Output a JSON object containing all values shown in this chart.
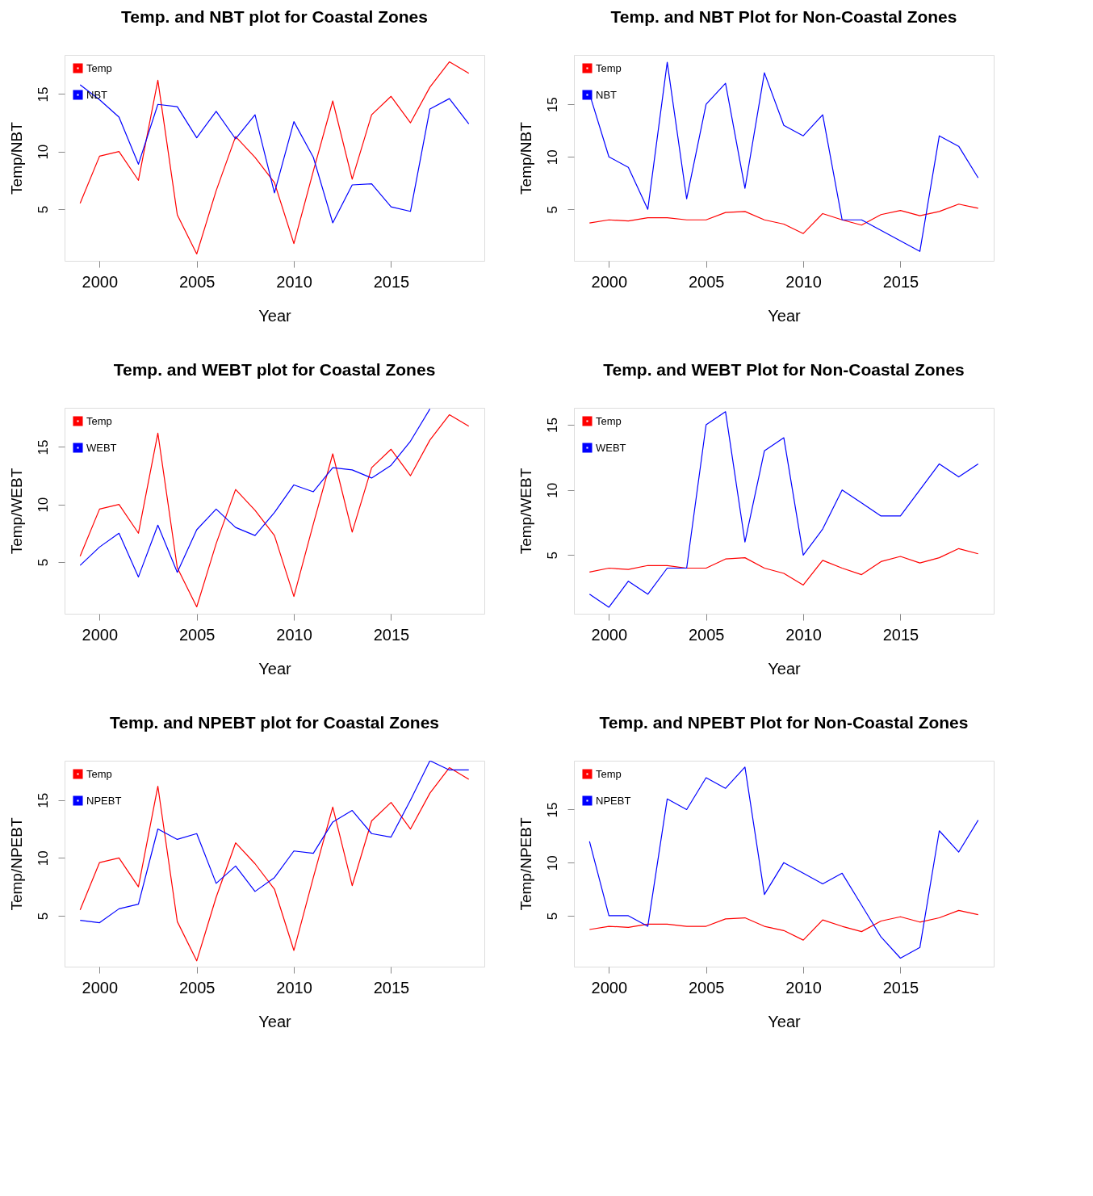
{
  "chart_data": [
    {
      "type": "line",
      "title": "Temp. and NBT plot for Coastal Zones",
      "xlabel": "Year",
      "ylabel": "Temp/NBT",
      "x": [
        1999,
        2000,
        2001,
        2002,
        2003,
        2004,
        2005,
        2006,
        2007,
        2008,
        2009,
        2010,
        2011,
        2012,
        2013,
        2014,
        2015,
        2016,
        2017,
        2018,
        2019
      ],
      "xlim": [
        1998.2,
        2019.8
      ],
      "xticks": [
        2000,
        2005,
        2010,
        2015
      ],
      "ylim": [
        0.5,
        18.4
      ],
      "yticks": [
        5,
        10,
        15
      ],
      "grid": false,
      "legend": "top left",
      "series": [
        {
          "name": "Temp",
          "color": "#ff0000",
          "values": [
            5.5,
            9.6,
            10.0,
            7.5,
            16.2,
            4.5,
            1.1,
            6.6,
            11.3,
            9.5,
            7.3,
            2.0,
            8.3,
            14.4,
            7.6,
            13.2,
            14.8,
            12.5,
            15.6,
            17.8,
            16.8
          ]
        },
        {
          "name": "NBT",
          "color": "#0000ff",
          "values": [
            15.8,
            14.5,
            13.0,
            8.9,
            14.1,
            13.9,
            11.2,
            13.5,
            11.1,
            13.2,
            6.4,
            12.6,
            9.5,
            3.8,
            7.1,
            7.2,
            5.2,
            4.8,
            13.7,
            14.6,
            12.4
          ]
        }
      ]
    },
    {
      "type": "line",
      "title": "Temp. and NBT Plot for Non-Coastal Zones",
      "xlabel": "Year",
      "ylabel": "Temp/NBT",
      "x": [
        1999,
        2000,
        2001,
        2002,
        2003,
        2004,
        2005,
        2006,
        2007,
        2008,
        2009,
        2010,
        2011,
        2012,
        2013,
        2014,
        2015,
        2016,
        2017,
        2018,
        2019
      ],
      "xlim": [
        1998.2,
        2019.8
      ],
      "xticks": [
        2000,
        2005,
        2010,
        2015
      ],
      "ylim": [
        0.1,
        19.7
      ],
      "yticks": [
        5,
        10,
        15
      ],
      "grid": false,
      "legend": "top left",
      "series": [
        {
          "name": "Temp",
          "color": "#ff0000",
          "values": [
            3.7,
            4.0,
            3.9,
            4.2,
            4.2,
            4.0,
            4.0,
            4.7,
            4.8,
            4.0,
            3.6,
            2.7,
            4.6,
            4.0,
            3.5,
            4.5,
            4.9,
            4.4,
            4.8,
            5.5,
            5.1
          ]
        },
        {
          "name": "NBT",
          "color": "#0000ff",
          "values": [
            16,
            10,
            9,
            5,
            19,
            6,
            15,
            17,
            7,
            18,
            13,
            12,
            14,
            4,
            4,
            3,
            2,
            1,
            12,
            11,
            8
          ]
        }
      ]
    },
    {
      "type": "line",
      "title": "Temp. and WEBT plot for Coastal Zones",
      "xlabel": "Year",
      "ylabel": "Temp/WEBT",
      "x": [
        1999,
        2000,
        2001,
        2002,
        2003,
        2004,
        2005,
        2006,
        2007,
        2008,
        2009,
        2010,
        2011,
        2012,
        2013,
        2014,
        2015,
        2016,
        2017,
        2018,
        2019
      ],
      "xlim": [
        1998.2,
        2019.8
      ],
      "xticks": [
        2000,
        2005,
        2010,
        2015
      ],
      "ylim": [
        0.5,
        18.4
      ],
      "yticks": [
        5,
        10,
        15
      ],
      "grid": false,
      "legend": "top left",
      "series": [
        {
          "name": "Temp",
          "color": "#ff0000",
          "values": [
            5.5,
            9.6,
            10.0,
            7.5,
            16.2,
            4.5,
            1.1,
            6.6,
            11.3,
            9.5,
            7.3,
            2.0,
            8.3,
            14.4,
            7.6,
            13.2,
            14.8,
            12.5,
            15.6,
            17.8,
            16.8
          ]
        },
        {
          "name": "WEBT",
          "color": "#0000ff",
          "values": [
            4.7,
            6.3,
            7.5,
            3.7,
            8.2,
            4.1,
            7.8,
            9.6,
            8.0,
            7.3,
            9.3,
            11.7,
            11.1,
            13.2,
            13.0,
            12.3,
            13.4,
            15.5,
            18.3,
            null,
            null
          ]
        }
      ]
    },
    {
      "type": "line",
      "title": "Temp. and WEBT Plot for Non-Coastal Zones",
      "xlabel": "Year",
      "ylabel": "Temp/WEBT",
      "x": [
        1999,
        2000,
        2001,
        2002,
        2003,
        2004,
        2005,
        2006,
        2007,
        2008,
        2009,
        2010,
        2011,
        2012,
        2013,
        2014,
        2015,
        2016,
        2017,
        2018,
        2019
      ],
      "xlim": [
        1998.2,
        2019.8
      ],
      "xticks": [
        2000,
        2005,
        2010,
        2015
      ],
      "ylim": [
        0.5,
        16.3
      ],
      "yticks": [
        5,
        10,
        15
      ],
      "grid": false,
      "legend": "top left",
      "series": [
        {
          "name": "Temp",
          "color": "#ff0000",
          "values": [
            3.7,
            4.0,
            3.9,
            4.2,
            4.2,
            4.0,
            4.0,
            4.7,
            4.8,
            4.0,
            3.6,
            2.7,
            4.6,
            4.0,
            3.5,
            4.5,
            4.9,
            4.4,
            4.8,
            5.5,
            5.1
          ]
        },
        {
          "name": "WEBT",
          "color": "#0000ff",
          "values": [
            2,
            1,
            3,
            2,
            4,
            4,
            15,
            16,
            6,
            13,
            14,
            5,
            7,
            10,
            9,
            8,
            8,
            10,
            12,
            11,
            12
          ]
        }
      ]
    },
    {
      "type": "line",
      "title": "Temp. and NPEBT plot for Coastal Zones",
      "xlabel": "Year",
      "ylabel": "Temp/NPEBT",
      "x": [
        1999,
        2000,
        2001,
        2002,
        2003,
        2004,
        2005,
        2006,
        2007,
        2008,
        2009,
        2010,
        2011,
        2012,
        2013,
        2014,
        2015,
        2016,
        2017,
        2018,
        2019
      ],
      "xlim": [
        1998.2,
        2019.8
      ],
      "xticks": [
        2000,
        2005,
        2010,
        2015
      ],
      "ylim": [
        0.6,
        18.4
      ],
      "yticks": [
        5,
        10,
        15
      ],
      "grid": false,
      "legend": "top left",
      "series": [
        {
          "name": "Temp",
          "color": "#ff0000",
          "values": [
            5.5,
            9.6,
            10.0,
            7.5,
            16.2,
            4.5,
            1.1,
            6.6,
            11.3,
            9.5,
            7.3,
            2.0,
            8.3,
            14.4,
            7.6,
            13.2,
            14.8,
            12.5,
            15.6,
            17.8,
            16.8
          ]
        },
        {
          "name": "NPEBT",
          "color": "#0000ff",
          "values": [
            4.6,
            4.4,
            5.6,
            6.0,
            12.5,
            11.6,
            12.1,
            7.8,
            9.3,
            7.1,
            8.3,
            10.6,
            10.4,
            13.1,
            14.1,
            12.1,
            11.8,
            15.0,
            18.4,
            17.6,
            17.6
          ]
        }
      ]
    },
    {
      "type": "line",
      "title": "Temp. and NPEBT Plot for Non-Coastal Zones",
      "xlabel": "Year",
      "ylabel": "Temp/NPEBT",
      "x": [
        1999,
        2000,
        2001,
        2002,
        2003,
        2004,
        2005,
        2006,
        2007,
        2008,
        2009,
        2010,
        2011,
        2012,
        2013,
        2014,
        2015,
        2016,
        2017,
        2018,
        2019
      ],
      "xlim": [
        1998.2,
        2019.8
      ],
      "xticks": [
        2000,
        2005,
        2010,
        2015
      ],
      "ylim": [
        0.2,
        19.6
      ],
      "yticks": [
        5,
        10,
        15
      ],
      "grid": false,
      "legend": "top left",
      "series": [
        {
          "name": "Temp",
          "color": "#ff0000",
          "values": [
            3.7,
            4.0,
            3.9,
            4.2,
            4.2,
            4.0,
            4.0,
            4.7,
            4.8,
            4.0,
            3.6,
            2.7,
            4.6,
            4.0,
            3.5,
            4.5,
            4.9,
            4.4,
            4.8,
            5.5,
            5.1
          ]
        },
        {
          "name": "NPEBT",
          "color": "#0000ff",
          "values": [
            12,
            5,
            5,
            4,
            16,
            15,
            18,
            17,
            19,
            7,
            10,
            9,
            8,
            9,
            6,
            3,
            1,
            2,
            13,
            11,
            14
          ]
        }
      ]
    }
  ]
}
